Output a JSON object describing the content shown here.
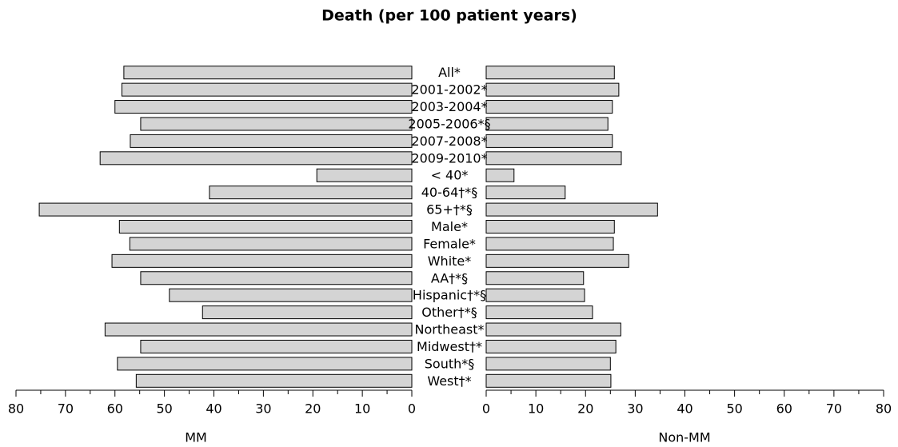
{
  "chart_data": {
    "type": "bar",
    "orientation": "horizontal",
    "mirrored": true,
    "title": "Death (per 100 patient years)",
    "categories": [
      "All*",
      "2001-2002*",
      "2003-2004*",
      "2005-2006*§",
      "2007-2008*",
      "2009-2010*",
      "< 40*",
      "40-64†*§",
      "65+†*§",
      "Male*",
      "Female*",
      "White*",
      "AA†*§",
      "Hispanic†*§",
      "Other†*§",
      "Northeast*",
      "Midwest†*",
      "South*§",
      "West†*"
    ],
    "series": [
      {
        "name": "MM",
        "color": "#d4d4d4",
        "values": [
          58.2,
          58.6,
          60,
          54.8,
          56.9,
          63,
          19.2,
          40.9,
          75.3,
          59.1,
          57,
          60.6,
          54.8,
          49,
          42.3,
          62,
          54.8,
          59.5,
          55.7
        ]
      },
      {
        "name": "Non-MM",
        "color": "#d4d4d4",
        "values": [
          25.8,
          26.7,
          25.4,
          24.5,
          25.4,
          27.2,
          5.6,
          15.9,
          34.5,
          25.8,
          25.6,
          28.7,
          19.6,
          19.8,
          21.4,
          27.1,
          26.1,
          25,
          25.1
        ]
      }
    ],
    "xlim": [
      0,
      80
    ],
    "xticks": [
      0,
      10,
      20,
      30,
      40,
      50,
      60,
      70,
      80
    ],
    "minor_xticks": [
      5,
      15,
      25,
      35,
      45,
      55,
      65,
      75
    ]
  }
}
